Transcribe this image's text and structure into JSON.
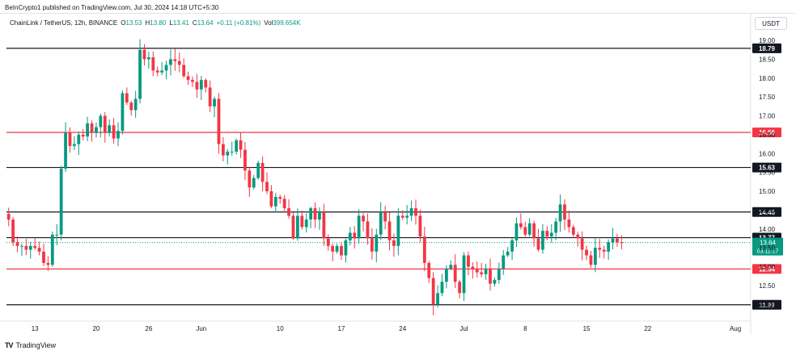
{
  "header": {
    "caption": "BeInCrypto1 published on TradingView.com, Jul 30, 2024 14:18 UTC+5:30"
  },
  "legend": {
    "symbol": "ChainLink / TetherUS, 12h, BINANCE",
    "o_label": "O",
    "o_value": "13.53",
    "h_label": "H",
    "h_value": "13.80",
    "l_label": "L",
    "l_value": "13.41",
    "c_label": "C",
    "c_value": "13.64",
    "change": "+0.11 (+0.81%)",
    "vol_label": "Vol",
    "vol_value": "399.654K"
  },
  "currency": "USDT",
  "footer": {
    "logo": "TV",
    "brand": "TradingView"
  },
  "colors": {
    "up": "#089981",
    "down": "#f23645",
    "support_black": "#131722",
    "support_red": "#f23645",
    "current_price_bg": "#089981"
  },
  "chart_data": {
    "type": "candlestick",
    "title": "ChainLink / TetherUS, 12h, BINANCE",
    "ylim": [
      11.6,
      19.3
    ],
    "y_ticks": [
      "19.00",
      "18.50",
      "18.00",
      "17.50",
      "17.00",
      "16.50",
      "16.00",
      "15.50",
      "15.00",
      "14.50",
      "14.00",
      "13.50",
      "13.00",
      "12.50",
      "12.00"
    ],
    "x_ticks": [
      {
        "label": "13",
        "index": 6
      },
      {
        "label": "20",
        "index": 20
      },
      {
        "label": "26",
        "index": 32
      },
      {
        "label": "Jun",
        "index": 44
      },
      {
        "label": "10",
        "index": 62
      },
      {
        "label": "17",
        "index": 76
      },
      {
        "label": "24",
        "index": 90
      },
      {
        "label": "Jul",
        "index": 104
      },
      {
        "label": "8",
        "index": 118
      },
      {
        "label": "15",
        "index": 132
      },
      {
        "label": "22",
        "index": 146
      },
      {
        "label": "Aug",
        "index": 166
      }
    ],
    "horizontal_levels": [
      {
        "value": 18.79,
        "label": "18.79",
        "color": "black"
      },
      {
        "value": 16.56,
        "label": "16.56",
        "color": "red"
      },
      {
        "value": 15.63,
        "label": "15.63",
        "color": "black"
      },
      {
        "value": 14.45,
        "label": "14.45",
        "color": "black"
      },
      {
        "value": 13.77,
        "label": "13.77",
        "color": "black"
      },
      {
        "value": 12.94,
        "label": "12.94",
        "color": "red"
      },
      {
        "value": 11.99,
        "label": "11.99",
        "color": "black"
      }
    ],
    "current_price": {
      "value": 13.64,
      "label": "13.64",
      "countdown": "03:11:17"
    },
    "closes": [
      14.25,
      13.65,
      13.55,
      13.55,
      13.45,
      13.55,
      13.5,
      13.4,
      13.1,
      13.05,
      13.85,
      13.85,
      15.6,
      16.55,
      16.2,
      16.25,
      16.5,
      16.45,
      16.8,
      16.55,
      16.7,
      17.0,
      16.55,
      16.75,
      16.4,
      16.6,
      17.6,
      17.35,
      17.15,
      17.45,
      18.75,
      18.5,
      18.55,
      18.2,
      18.15,
      18.2,
      18.35,
      18.5,
      18.45,
      18.35,
      18.05,
      17.95,
      17.9,
      17.7,
      17.95,
      17.75,
      17.25,
      17.45,
      16.25,
      15.95,
      16.05,
      16.05,
      16.35,
      16.1,
      15.55,
      15.1,
      15.35,
      15.75,
      15.25,
      15.0,
      14.6,
      14.85,
      14.8,
      14.55,
      14.35,
      13.75,
      14.35,
      14.05,
      14.25,
      14.55,
      14.25,
      14.45,
      13.75,
      13.55,
      13.4,
      13.55,
      13.3,
      13.7,
      13.9,
      13.75,
      14.35,
      14.2,
      13.75,
      13.4,
      13.85,
      14.45,
      14.2,
      13.7,
      13.55,
      14.35,
      14.3,
      14.35,
      14.55,
      14.35,
      13.8,
      13.1,
      12.7,
      12.0,
      12.3,
      12.6,
      12.95,
      13.05,
      12.6,
      12.3,
      13.3,
      13.0,
      12.95,
      12.85,
      12.8,
      12.95,
      12.55,
      12.65,
      12.95,
      13.3,
      13.4,
      13.7,
      14.15,
      14.05,
      13.85,
      14.15,
      13.75,
      13.45,
      13.95,
      13.8,
      13.9,
      14.2,
      14.65,
      14.25,
      14.05,
      13.85,
      13.75,
      13.45,
      13.3,
      13.05,
      13.5,
      13.45,
      13.4,
      13.65,
      13.75,
      13.65,
      13.64
    ]
  }
}
